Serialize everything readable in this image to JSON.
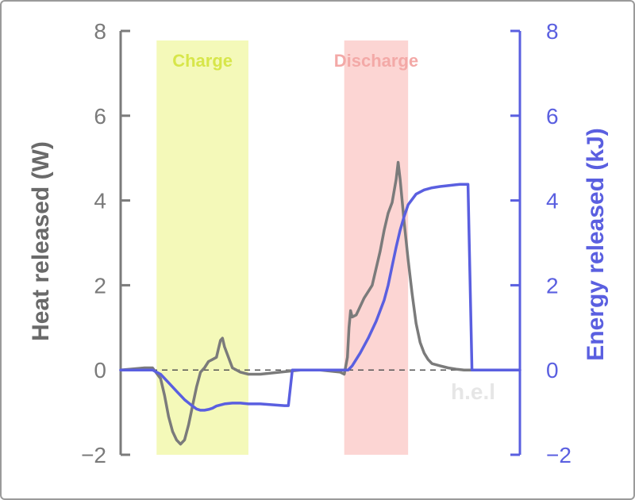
{
  "chart_data": {
    "type": "line",
    "xlabel": "",
    "ylabel": "Heat released (W)",
    "y2label": "Energy released (kJ)",
    "ylim": [
      -2,
      8
    ],
    "y2lim": [
      -2,
      8
    ],
    "yticks": [
      "8",
      "6",
      "4",
      "2",
      "0",
      "−2"
    ],
    "y2ticks": [
      "8",
      "6",
      "4",
      "2",
      "0",
      "−2"
    ],
    "xlim": [
      0,
      100
    ],
    "regions": [
      {
        "label": "Charge",
        "x_start": 9,
        "x_end": 32,
        "color": "#f4f9b9",
        "label_color": "#d7e64a"
      },
      {
        "label": "Discharge",
        "x_start": 56,
        "x_end": 72,
        "color": "#fcd5d3",
        "label_color": "#f3a9a7"
      }
    ],
    "baseline": {
      "y": 0,
      "style": "dashed",
      "color": "#555555"
    },
    "series": [
      {
        "axis": "left",
        "color": "#7b7b7b",
        "x": [
          0,
          6,
          8,
          10,
          11,
          12,
          13,
          14,
          15,
          16,
          17,
          18,
          19,
          20,
          21,
          22,
          23,
          24,
          24.5,
          25,
          25.5,
          26,
          27,
          28,
          30,
          32,
          35,
          40,
          45,
          50,
          55,
          56,
          56.8,
          57.2,
          57.6,
          58,
          59,
          60,
          61,
          62,
          63,
          64,
          65,
          66,
          67,
          68,
          69,
          69.5,
          70,
          70.5,
          71,
          72,
          73,
          74,
          75,
          76,
          77,
          78,
          80,
          82,
          84,
          86,
          88,
          90,
          92
        ],
        "values": [
          0,
          0.05,
          0.05,
          -0.2,
          -0.6,
          -1.1,
          -1.45,
          -1.65,
          -1.75,
          -1.65,
          -1.3,
          -0.85,
          -0.4,
          -0.05,
          0.05,
          0.2,
          0.25,
          0.3,
          0.5,
          0.7,
          0.75,
          0.55,
          0.3,
          0.05,
          -0.05,
          -0.1,
          -0.1,
          -0.05,
          0,
          0,
          -0.05,
          -0.1,
          0.3,
          1.0,
          1.4,
          1.25,
          1.3,
          1.5,
          1.7,
          1.85,
          2.0,
          2.4,
          2.8,
          3.3,
          3.7,
          3.95,
          4.5,
          4.9,
          4.5,
          4.0,
          3.5,
          2.6,
          1.8,
          1.1,
          0.65,
          0.4,
          0.25,
          0.15,
          0.1,
          0.05,
          0.02,
          0,
          0,
          0,
          0
        ]
      },
      {
        "axis": "right",
        "color": "#5a5fe0",
        "x": [
          0,
          8,
          10,
          12,
          14,
          16,
          18,
          19,
          20,
          21,
          22,
          23,
          24,
          26,
          28,
          30,
          32,
          35,
          38,
          41,
          42,
          43,
          45,
          50,
          55,
          57,
          58,
          60,
          62,
          64,
          66,
          67,
          68,
          69,
          70,
          71,
          72,
          74,
          76,
          78,
          80,
          82,
          84,
          85,
          86,
          87,
          88,
          90,
          92,
          100
        ],
        "values": [
          0,
          0,
          -0.1,
          -0.3,
          -0.5,
          -0.7,
          -0.85,
          -0.92,
          -0.95,
          -0.95,
          -0.93,
          -0.9,
          -0.85,
          -0.8,
          -0.78,
          -0.78,
          -0.8,
          -0.8,
          -0.82,
          -0.84,
          -0.84,
          0,
          0,
          0,
          0,
          0,
          0.1,
          0.4,
          0.75,
          1.15,
          1.65,
          2.0,
          2.45,
          2.9,
          3.3,
          3.62,
          3.9,
          4.15,
          4.25,
          4.3,
          4.33,
          4.35,
          4.37,
          4.38,
          4.38,
          4.38,
          0,
          0,
          0,
          0
        ]
      }
    ]
  },
  "watermark": "h.e.l"
}
